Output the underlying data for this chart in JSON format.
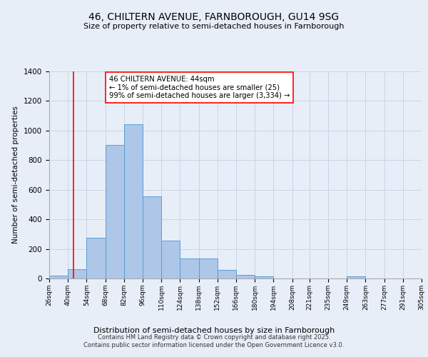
{
  "title_line1": "46, CHILTERN AVENUE, FARNBOROUGH, GU14 9SG",
  "title_line2": "Size of property relative to semi-detached houses in Farnborough",
  "xlabel": "Distribution of semi-detached houses by size in Farnborough",
  "ylabel": "Number of semi-detached properties",
  "footer_line1": "Contains HM Land Registry data © Crown copyright and database right 2025.",
  "footer_line2": "Contains public sector information licensed under the Open Government Licence v3.0.",
  "annotation_line1": "46 CHILTERN AVENUE: 44sqm",
  "annotation_line2": "← 1% of semi-detached houses are smaller (25)",
  "annotation_line3": "99% of semi-detached houses are larger (3,334) →",
  "bins": [
    26,
    40,
    54,
    68,
    82,
    96,
    110,
    124,
    138,
    152,
    166,
    180,
    194,
    208,
    221,
    235,
    249,
    263,
    277,
    291,
    305
  ],
  "bar_values": [
    20,
    65,
    275,
    905,
    1045,
    555,
    255,
    133,
    133,
    60,
    25,
    15,
    0,
    0,
    0,
    0,
    13,
    0,
    0,
    0,
    0
  ],
  "bar_color": "#aec6e8",
  "bar_edge_color": "#5a9fd4",
  "grid_color": "#c8d4e8",
  "bg_color": "#e8eef8",
  "red_line_x": 44,
  "ylim": [
    0,
    1400
  ],
  "yticks": [
    0,
    200,
    400,
    600,
    800,
    1000,
    1200,
    1400
  ]
}
